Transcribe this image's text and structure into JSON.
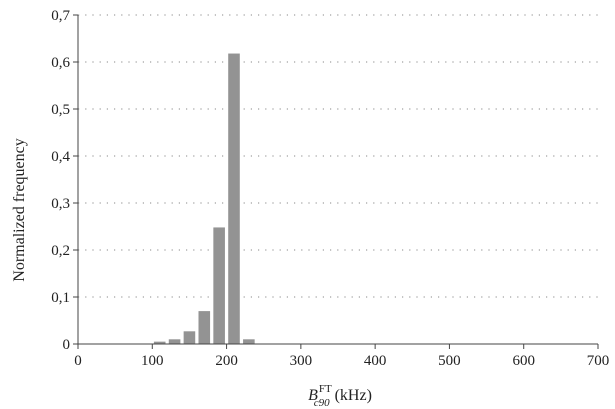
{
  "chart_data": {
    "type": "bar",
    "x": [
      110,
      130,
      150,
      170,
      190,
      210,
      230
    ],
    "values": [
      0.005,
      0.01,
      0.027,
      0.07,
      0.248,
      0.618,
      0.01
    ],
    "bin_width": 20,
    "xlim": [
      0,
      700
    ],
    "ylim": [
      0,
      0.7
    ],
    "xticks": [
      0,
      100,
      200,
      300,
      400,
      500,
      600,
      700
    ],
    "xtick_labels": [
      "0",
      "100",
      "200",
      "300",
      "400",
      "500",
      "600",
      "700"
    ],
    "yticks": [
      0,
      0.1,
      0.2,
      0.3,
      0.4,
      0.5,
      0.6,
      0.7
    ],
    "ytick_labels": [
      "0",
      "0,1",
      "0,2",
      "0,3",
      "0,4",
      "0,5",
      "0,6",
      "0,7"
    ],
    "ylabel": "Normalized frequency",
    "xlabel": {
      "symbol": "B",
      "superscript": "FT",
      "subscript": "c90",
      "unit": "(kHz)"
    },
    "grid": "horizontal dotted",
    "colors": {
      "bar": "#939393",
      "axis": "#444444",
      "grid": "#888888"
    }
  }
}
